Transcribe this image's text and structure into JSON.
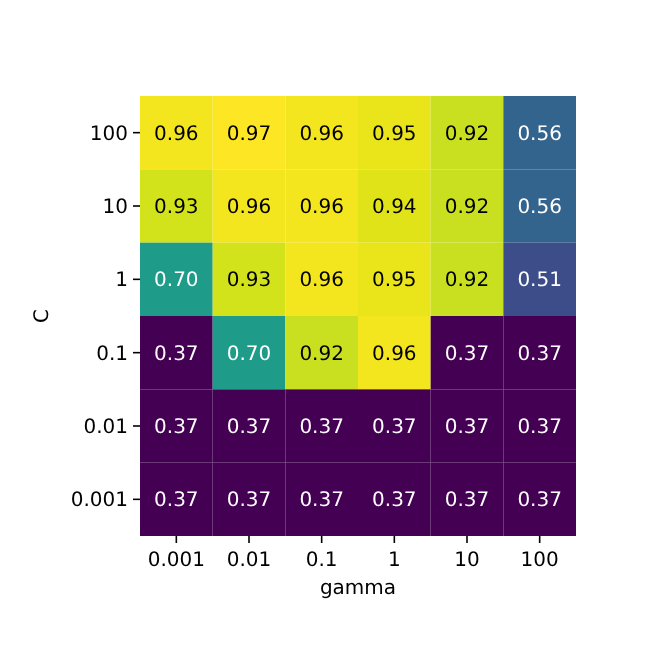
{
  "chart_data": {
    "type": "heatmap",
    "xlabel": "gamma",
    "ylabel": "C",
    "categories": [
      "0.001",
      "0.01",
      "0.1",
      "1",
      "10",
      "100"
    ],
    "y_categories": [
      "100",
      "10",
      "1",
      "0.1",
      "0.01",
      "0.001"
    ],
    "cells": [
      [
        0.96,
        0.97,
        0.96,
        0.95,
        0.92,
        0.56
      ],
      [
        0.93,
        0.96,
        0.96,
        0.94,
        0.92,
        0.56
      ],
      [
        0.7,
        0.93,
        0.96,
        0.95,
        0.92,
        0.51
      ],
      [
        0.37,
        0.7,
        0.92,
        0.96,
        0.37,
        0.37
      ],
      [
        0.37,
        0.37,
        0.37,
        0.37,
        0.37,
        0.37
      ],
      [
        0.37,
        0.37,
        0.37,
        0.37,
        0.37,
        0.37
      ]
    ],
    "cell_labels": [
      [
        "0.96",
        "0.97",
        "0.96",
        "0.95",
        "0.92",
        "0.56"
      ],
      [
        "0.93",
        "0.96",
        "0.96",
        "0.94",
        "0.92",
        "0.56"
      ],
      [
        "0.70",
        "0.93",
        "0.96",
        "0.95",
        "0.92",
        "0.51"
      ],
      [
        "0.37",
        "0.70",
        "0.92",
        "0.96",
        "0.37",
        "0.37"
      ],
      [
        "0.37",
        "0.37",
        "0.37",
        "0.37",
        "0.37",
        "0.37"
      ],
      [
        "0.37",
        "0.37",
        "0.37",
        "0.37",
        "0.37",
        "0.37"
      ]
    ]
  }
}
